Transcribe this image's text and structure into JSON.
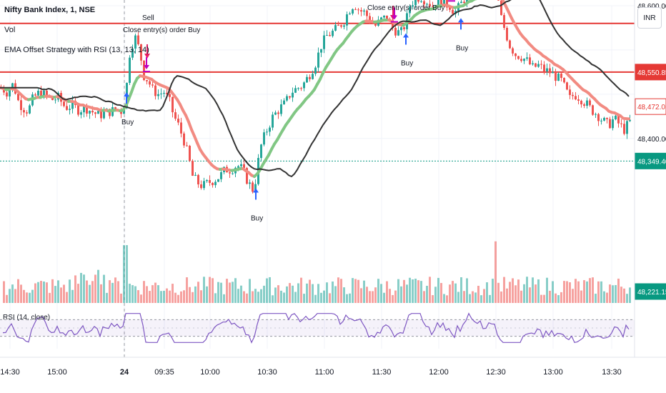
{
  "header": {
    "symbol": "Nifty Bank Index, 1, NSE",
    "volume_label": "Vol",
    "strategy": "EMA Offset Strategy with RSI (13, 13, 14)",
    "currency": "INR"
  },
  "colors": {
    "up": "#26a69a",
    "down": "#ef5350",
    "ema_up": "#81c784",
    "ema_down": "#f28b82",
    "offset_line": "#333333",
    "level": "#e53935",
    "buy_arrow": "#2962ff",
    "sell_arrow": "#e91e63",
    "close_arrow": "#c000c0",
    "rsi": "#7e57c2",
    "price_green": "#089981"
  },
  "chart_data": [
    {
      "type": "candlestick",
      "y_range": [
        48180,
        48700
      ],
      "x_tick_labels": [
        "14:30",
        "15:00",
        "24",
        "09:35",
        "10:00",
        "10:30",
        "11:00",
        "11:30",
        "12:00",
        "12:30",
        "13:00",
        "13:30"
      ],
      "y_tick_labels": [
        "48,600.00",
        "48,600.00",
        "48,400.00"
      ],
      "price_badges": [
        {
          "label": "48,550.85",
          "style": "filled-red"
        },
        {
          "label": "48,472.05",
          "style": "outline-red"
        },
        {
          "label": "48,349.40",
          "style": "filled-green"
        },
        {
          "label": "48,221.15",
          "style": "filled-green"
        }
      ],
      "horizontal_levels": [
        48660,
        48550,
        48349
      ],
      "path_points": [
        [
          0,
          48515
        ],
        [
          8,
          48505
        ],
        [
          18,
          48525
        ],
        [
          22,
          48490
        ],
        [
          30,
          48470
        ],
        [
          38,
          48462
        ],
        [
          45,
          48492
        ],
        [
          54,
          48504
        ],
        [
          63,
          48496
        ],
        [
          72,
          48488
        ],
        [
          80,
          48492
        ],
        [
          90,
          48470
        ],
        [
          100,
          48474
        ],
        [
          109,
          48464
        ],
        [
          118,
          48470
        ],
        [
          128,
          48460
        ],
        [
          137,
          48452
        ],
        [
          146,
          48458
        ],
        [
          155,
          48462
        ],
        [
          162,
          48468
        ],
        [
          168,
          48462
        ],
        [
          174,
          48488
        ],
        [
          180,
          48592
        ],
        [
          187,
          48632
        ],
        [
          194,
          48598
        ],
        [
          200,
          48542
        ],
        [
          206,
          48530
        ],
        [
          212,
          48510
        ],
        [
          220,
          48500
        ],
        [
          228,
          48505
        ],
        [
          236,
          48482
        ],
        [
          242,
          48450
        ],
        [
          248,
          48430
        ],
        [
          256,
          48395
        ],
        [
          262,
          48360
        ],
        [
          268,
          48315
        ],
        [
          275,
          48300
        ],
        [
          282,
          48292
        ],
        [
          290,
          48300
        ],
        [
          298,
          48306
        ],
        [
          306,
          48314
        ],
        [
          314,
          48330
        ],
        [
          322,
          48330
        ],
        [
          330,
          48340
        ],
        [
          338,
          48330
        ],
        [
          346,
          48300
        ],
        [
          352,
          48285
        ],
        [
          357,
          48310
        ],
        [
          362,
          48375
        ],
        [
          370,
          48412
        ],
        [
          380,
          48448
        ],
        [
          390,
          48468
        ],
        [
          398,
          48480
        ],
        [
          406,
          48505
        ],
        [
          414,
          48513
        ],
        [
          422,
          48520
        ],
        [
          430,
          48540
        ],
        [
          440,
          48570
        ],
        [
          448,
          48610
        ],
        [
          456,
          48632
        ],
        [
          462,
          48638
        ],
        [
          470,
          48648
        ],
        [
          480,
          48666
        ],
        [
          487,
          48690
        ],
        [
          494,
          48705
        ],
        [
          501,
          48690
        ],
        [
          508,
          48685
        ],
        [
          516,
          48670
        ],
        [
          524,
          48655
        ],
        [
          532,
          48668
        ],
        [
          540,
          48675
        ],
        [
          548,
          48650
        ],
        [
          555,
          48640
        ],
        [
          560,
          48640
        ],
        [
          566,
          48660
        ],
        [
          572,
          48700
        ],
        [
          580,
          48718
        ],
        [
          588,
          48720
        ],
        [
          596,
          48710
        ],
        [
          604,
          48700
        ],
        [
          612,
          48720
        ],
        [
          620,
          48705
        ],
        [
          628,
          48700
        ],
        [
          635,
          48685
        ],
        [
          640,
          48695
        ],
        [
          648,
          48715
        ],
        [
          656,
          48728
        ],
        [
          664,
          48732
        ],
        [
          672,
          48730
        ],
        [
          680,
          48738
        ],
        [
          688,
          48746
        ],
        [
          694,
          48725
        ],
        [
          700,
          48672
        ],
        [
          706,
          48640
        ],
        [
          712,
          48610
        ],
        [
          720,
          48590
        ],
        [
          728,
          48585
        ],
        [
          736,
          48575
        ],
        [
          744,
          48560
        ],
        [
          752,
          48565
        ],
        [
          760,
          48555
        ],
        [
          768,
          48550
        ],
        [
          776,
          48540
        ],
        [
          784,
          48530
        ],
        [
          790,
          48510
        ],
        [
          796,
          48490
        ],
        [
          802,
          48500
        ],
        [
          810,
          48492
        ],
        [
          818,
          48480
        ],
        [
          826,
          48465
        ],
        [
          834,
          48455
        ],
        [
          842,
          48440
        ],
        [
          850,
          48430
        ],
        [
          858,
          48445
        ],
        [
          866,
          48430
        ],
        [
          872,
          48420
        ],
        [
          880,
          48438
        ],
        [
          888,
          48432
        ]
      ],
      "signals": [
        {
          "kind": "sell",
          "x": 206,
          "label": "Sell"
        },
        {
          "kind": "sell",
          "x": 550,
          "label": ""
        },
        {
          "kind": "buy",
          "x": 177,
          "label": "Buy"
        },
        {
          "kind": "buy",
          "x": 358,
          "label": "Buy"
        },
        {
          "kind": "buy",
          "x": 568,
          "label": "Buy"
        },
        {
          "kind": "buy",
          "x": 645,
          "label": "Buy"
        },
        {
          "kind": "close",
          "x": 205,
          "label": ""
        },
        {
          "kind": "close",
          "x": 552,
          "label": ""
        },
        {
          "kind": "close",
          "x": 632,
          "label": ""
        },
        {
          "kind": "close",
          "x": 694,
          "label": ""
        }
      ],
      "text_annotations": [
        {
          "label": "Close entry(s) order Buy",
          "x": 172,
          "y": 48640
        },
        {
          "label": "Close entry(s) order Buy",
          "x": 514,
          "y": 48690
        },
        {
          "label": "Close entry(s) order Buy",
          "x": 594,
          "y": 48748
        },
        {
          "label": "Close entry(s) order Buy",
          "x": 656,
          "y": 48768
        }
      ]
    },
    {
      "type": "bar",
      "series_name": "Vol",
      "y_range": [
        0,
        100
      ]
    },
    {
      "type": "line",
      "series_name": "RSI (14, close)",
      "y_range": [
        0,
        100
      ],
      "bands": [
        70,
        30
      ]
    }
  ]
}
